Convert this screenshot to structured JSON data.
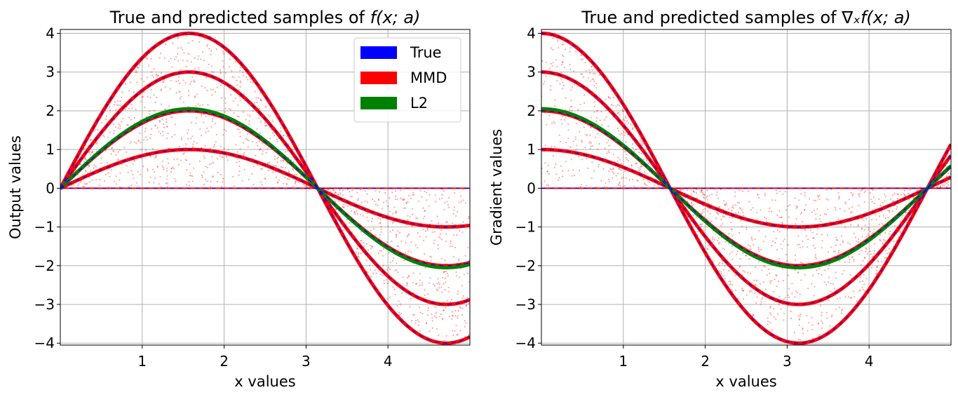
{
  "chart_data": [
    {
      "type": "line",
      "title_prefix": "True and predicted samples of ",
      "title_math": "f(x; a)",
      "xlabel": "x values",
      "ylabel": "Output values",
      "xlim": [
        0,
        5
      ],
      "ylim": [
        -4.05,
        4.1
      ],
      "xticks": [
        1,
        2,
        3,
        4
      ],
      "xtick_labels": [
        "1",
        "2",
        "3",
        "4"
      ],
      "yticks": [
        -4,
        -3,
        -2,
        -1,
        0,
        1,
        2,
        3,
        4
      ],
      "ytick_labels": [
        "−4",
        "−3",
        "−2",
        "−1",
        "0",
        "1",
        "2",
        "3",
        "4"
      ],
      "function": "a*sin(x)",
      "amplitudes_true_mmd": [
        0,
        1,
        2,
        3,
        4
      ],
      "amplitude_l2": 2.05,
      "grid": true,
      "legend": {
        "position": "top-right",
        "entries": [
          {
            "label": "True",
            "color": "#0000ff"
          },
          {
            "label": "MMD",
            "color": "#ff0000"
          },
          {
            "label": "L2",
            "color": "#008000"
          }
        ]
      }
    },
    {
      "type": "line",
      "title_prefix": "True and predicted samples of ",
      "title_math": "∇ₓf(x; a)",
      "xlabel": "x values",
      "ylabel": "Gradient values",
      "xlim": [
        0,
        5
      ],
      "ylim": [
        -4.05,
        4.1
      ],
      "xticks": [
        1,
        2,
        3,
        4
      ],
      "xtick_labels": [
        "1",
        "2",
        "3",
        "4"
      ],
      "yticks": [
        -4,
        -3,
        -2,
        -1,
        0,
        1,
        2,
        3,
        4
      ],
      "ytick_labels": [
        "−4",
        "−3",
        "−2",
        "−1",
        "0",
        "1",
        "2",
        "3",
        "4"
      ],
      "function": "a*cos(x)",
      "amplitudes_true_mmd": [
        0,
        1,
        2,
        3,
        4
      ],
      "amplitude_l2": 2.05,
      "grid": true
    }
  ],
  "colors": {
    "true": "#0000ff",
    "mmd": "#ff0000",
    "l2": "#008000",
    "grid": "#b0b0b0",
    "scatter": "#ff0000"
  }
}
